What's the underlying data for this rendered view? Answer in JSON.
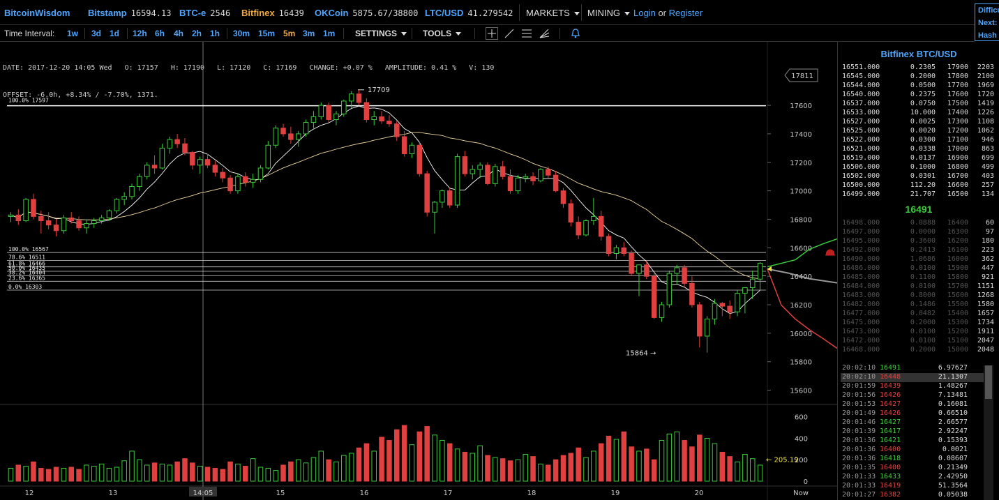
{
  "nav": {
    "brand": "BitcoinWisdom",
    "exchanges": [
      {
        "label": "Bitstamp",
        "value": "16594.13",
        "style": "blue"
      },
      {
        "label": "BTC-e",
        "value": "2546",
        "style": "blue"
      },
      {
        "label": "Bitfinex",
        "value": "16439",
        "style": "orange"
      },
      {
        "label": "OKCoin",
        "value": "5875.67/38800",
        "style": "blue"
      },
      {
        "label": "LTC/USD",
        "value": "41.279542",
        "style": "blue"
      }
    ],
    "markets": "MARKETS",
    "mining": "MINING",
    "login": "Login",
    "or": "or",
    "register": "Register",
    "right_panel": [
      "Difficu",
      "Next:",
      "Hash"
    ]
  },
  "toolbar": {
    "time_interval_label": "Time Interval:",
    "intervals": [
      "1w",
      "3d",
      "1d",
      "12h",
      "6h",
      "4h",
      "2h",
      "1h",
      "30m",
      "15m",
      "5m",
      "3m",
      "1m"
    ],
    "active_interval": "5m",
    "settings": "SETTINGS",
    "tools": "TOOLS"
  },
  "info": {
    "line1": "DATE: 2017-12-20 14:05 Wed   O: 17157   H: 17190   L: 17120   C: 17169   CHANGE: +0.07 %   AMPLITUDE: 0.41 %   V: 130",
    "line2": "OFFSET: -6.0h, +8.34% / -7.70%, 1371."
  },
  "book": {
    "title": "Bitfinex BTC/USD",
    "asks": [
      [
        "16551.000",
        "0.2305",
        "17900",
        "2203"
      ],
      [
        "16545.000",
        "0.2000",
        "17800",
        "2100"
      ],
      [
        "16544.000",
        "0.0500",
        "17700",
        "1969"
      ],
      [
        "16540.000",
        "0.2375",
        "17600",
        "1720"
      ],
      [
        "16537.000",
        "0.0750",
        "17500",
        "1419"
      ],
      [
        "16533.000",
        "10.000",
        "17400",
        "1226"
      ],
      [
        "16527.000",
        "0.0025",
        "17300",
        "1108"
      ],
      [
        "16525.000",
        "0.0020",
        "17200",
        "1062"
      ],
      [
        "16522.000",
        "0.0300",
        "17100",
        "946"
      ],
      [
        "16521.000",
        "0.0338",
        "17000",
        "863"
      ],
      [
        "16519.000",
        "0.0137",
        "16900",
        "699"
      ],
      [
        "16506.000",
        "0.1000",
        "16800",
        "499"
      ],
      [
        "16502.000",
        "0.0301",
        "16700",
        "403"
      ],
      [
        "16500.000",
        "112.20",
        "16600",
        "257"
      ],
      [
        "16499.000",
        "21.707",
        "16500",
        "134"
      ]
    ],
    "last_price": "16491",
    "bids": [
      [
        "16498.000",
        "0.0888",
        "16400",
        "60"
      ],
      [
        "16497.000",
        "0.0000",
        "16300",
        "97"
      ],
      [
        "16495.000",
        "0.3600",
        "16200",
        "180"
      ],
      [
        "16492.000",
        "0.2413",
        "16100",
        "223"
      ],
      [
        "16490.000",
        "1.0686",
        "16000",
        "362"
      ],
      [
        "16486.000",
        "0.0100",
        "15900",
        "447"
      ],
      [
        "16485.000",
        "0.1100",
        "15800",
        "921"
      ],
      [
        "16484.000",
        "0.0100",
        "15700",
        "1151"
      ],
      [
        "16483.000",
        "0.8000",
        "15600",
        "1268"
      ],
      [
        "16482.000",
        "0.1486",
        "15500",
        "1580"
      ],
      [
        "16477.000",
        "0.0482",
        "15400",
        "1657"
      ],
      [
        "16475.000",
        "0.2000",
        "15300",
        "1734"
      ],
      [
        "16473.000",
        "0.0100",
        "15200",
        "1911"
      ],
      [
        "16472.000",
        "0.0100",
        "15100",
        "2047"
      ],
      [
        "16468.000",
        "0.2000",
        "15000",
        "2048"
      ]
    ],
    "trades": [
      [
        "20:02:10",
        "16491",
        "6.97627",
        "up"
      ],
      [
        "20:02:10",
        "16448",
        "21.1307",
        "down"
      ],
      [
        "20:01:59",
        "16439",
        "1.48267",
        "down"
      ],
      [
        "20:01:56",
        "16426",
        "7.13481",
        "down"
      ],
      [
        "20:01:53",
        "16427",
        "0.16081",
        "down"
      ],
      [
        "20:01:49",
        "16426",
        "0.66510",
        "down"
      ],
      [
        "20:01:46",
        "16427",
        "2.66577",
        "up"
      ],
      [
        "20:01:39",
        "16417",
        "2.92247",
        "up"
      ],
      [
        "20:01:36",
        "16421",
        "0.15393",
        "up"
      ],
      [
        "20:01:36",
        "16400",
        "0.0021",
        "down"
      ],
      [
        "20:01:36",
        "16418",
        "0.08607",
        "up"
      ],
      [
        "20:01:35",
        "16400",
        "0.21349",
        "down"
      ],
      [
        "20:01:33",
        "16433",
        "2.42950",
        "up"
      ],
      [
        "20:01:33",
        "16419",
        "51.3564",
        "down"
      ],
      [
        "20:01:27",
        "16382",
        "0.05038",
        "down"
      ]
    ]
  },
  "chart": {
    "price_ticks": [
      "17600",
      "17400",
      "17200",
      "17000",
      "16800",
      "16600",
      "16400",
      "16200",
      "16000",
      "15800",
      "15600"
    ],
    "current_price_box": "17811",
    "high_label": "17709",
    "low_label": "15864 →",
    "fib_top": [
      "100.0% 17597"
    ],
    "fib_levels": [
      "100.0% 16567",
      "78.6% 16511",
      "61.8% 16466",
      "50.0% 16435",
      "38.2% 16404",
      "23.6% 16365",
      "0.0% 16303"
    ],
    "volume_ticks": [
      "600",
      "400",
      "200",
      "0"
    ],
    "volume_marker": "← 205.19",
    "x_labels": [
      "12",
      "13",
      "14:05",
      "15",
      "16",
      "17",
      "18",
      "19",
      "20",
      "Now"
    ]
  },
  "colors": {
    "up": "#3ccc3c",
    "down": "#e04040",
    "accent": "#4da6ff",
    "orange": "#f2a93b"
  },
  "chart_data": {
    "type": "candlestick",
    "title": "Bitfinex BTC/USD",
    "xlabel": "",
    "ylabel": "",
    "ylim": [
      15500,
      17850
    ],
    "volume_ylim": [
      0,
      650
    ],
    "x_labels": [
      "12",
      "13",
      "14",
      "15",
      "16",
      "17",
      "18",
      "19",
      "20"
    ],
    "candles_ohlc": [
      [
        16820,
        16850,
        16780,
        16830
      ],
      [
        16830,
        16870,
        16760,
        16790
      ],
      [
        16790,
        16950,
        16780,
        16940
      ],
      [
        16940,
        16980,
        16800,
        16820
      ],
      [
        16820,
        16860,
        16700,
        16790
      ],
      [
        16790,
        16850,
        16730,
        16760
      ],
      [
        16760,
        16800,
        16680,
        16720
      ],
      [
        16720,
        16830,
        16700,
        16810
      ],
      [
        16810,
        16850,
        16770,
        16790
      ],
      [
        16790,
        16820,
        16720,
        16740
      ],
      [
        16740,
        16800,
        16700,
        16770
      ],
      [
        16770,
        16810,
        16740,
        16790
      ],
      [
        16790,
        16830,
        16770,
        16810
      ],
      [
        16810,
        16870,
        16790,
        16860
      ],
      [
        16860,
        16950,
        16840,
        16940
      ],
      [
        16940,
        16990,
        16900,
        16960
      ],
      [
        16960,
        17050,
        16940,
        17030
      ],
      [
        17030,
        17120,
        17000,
        17100
      ],
      [
        17100,
        17200,
        17080,
        17180
      ],
      [
        17180,
        17250,
        17120,
        17160
      ],
      [
        17160,
        17330,
        17150,
        17300
      ],
      [
        17300,
        17380,
        17260,
        17360
      ],
      [
        17360,
        17400,
        17300,
        17330
      ],
      [
        17330,
        17370,
        17250,
        17270
      ],
      [
        17270,
        17280,
        17150,
        17180
      ],
      [
        17180,
        17240,
        17120,
        17220
      ],
      [
        17220,
        17260,
        17160,
        17180
      ],
      [
        17180,
        17210,
        17100,
        17130
      ],
      [
        17130,
        17160,
        17060,
        17090
      ],
      [
        17090,
        17110,
        16980,
        17000
      ],
      [
        17000,
        17120,
        16980,
        17100
      ],
      [
        17100,
        17130,
        17030,
        17060
      ],
      [
        17060,
        17120,
        17020,
        17080
      ],
      [
        17080,
        17180,
        17060,
        17160
      ],
      [
        17160,
        17350,
        17150,
        17320
      ],
      [
        17320,
        17460,
        17300,
        17440
      ],
      [
        17440,
        17470,
        17380,
        17400
      ],
      [
        17400,
        17450,
        17330,
        17360
      ],
      [
        17360,
        17420,
        17310,
        17400
      ],
      [
        17400,
        17500,
        17380,
        17480
      ],
      [
        17480,
        17560,
        17440,
        17520
      ],
      [
        17520,
        17620,
        17500,
        17600
      ],
      [
        17600,
        17620,
        17480,
        17500
      ],
      [
        17500,
        17560,
        17460,
        17540
      ],
      [
        17540,
        17640,
        17520,
        17630
      ],
      [
        17630,
        17700,
        17580,
        17680
      ],
      [
        17680,
        17709,
        17600,
        17620
      ],
      [
        17620,
        17650,
        17480,
        17500
      ],
      [
        17500,
        17560,
        17460,
        17520
      ],
      [
        17520,
        17560,
        17470,
        17490
      ],
      [
        17490,
        17530,
        17450,
        17470
      ],
      [
        17470,
        17490,
        17350,
        17380
      ],
      [
        17380,
        17420,
        17240,
        17260
      ],
      [
        17260,
        17340,
        17230,
        17320
      ],
      [
        17320,
        17340,
        17100,
        17120
      ],
      [
        17120,
        17140,
        16820,
        16850
      ],
      [
        16850,
        16930,
        16700,
        16920
      ],
      [
        16920,
        17010,
        16880,
        17000
      ],
      [
        17000,
        17020,
        16880,
        16900
      ],
      [
        16900,
        17260,
        16880,
        17240
      ],
      [
        17240,
        17280,
        17100,
        17120
      ],
      [
        17120,
        17180,
        17080,
        17150
      ],
      [
        17150,
        17200,
        17090,
        17180
      ],
      [
        17180,
        17200,
        17040,
        17050
      ],
      [
        17050,
        17190,
        17030,
        17170
      ],
      [
        17170,
        17210,
        17080,
        17100
      ],
      [
        17100,
        17150,
        16980,
        17000
      ],
      [
        17000,
        17110,
        16980,
        17090
      ],
      [
        17090,
        17120,
        17060,
        17100
      ],
      [
        17100,
        17130,
        17040,
        17070
      ],
      [
        17070,
        17160,
        17060,
        17150
      ],
      [
        17150,
        17170,
        17090,
        17110
      ],
      [
        17110,
        17140,
        16990,
        17000
      ],
      [
        17000,
        17020,
        16880,
        16910
      ],
      [
        16910,
        16940,
        16750,
        16780
      ],
      [
        16780,
        16820,
        16660,
        16690
      ],
      [
        16690,
        16800,
        16680,
        16790
      ],
      [
        16790,
        16950,
        16760,
        16820
      ],
      [
        16820,
        16860,
        16650,
        16680
      ],
      [
        16680,
        16700,
        16540,
        16560
      ],
      [
        16560,
        16620,
        16520,
        16600
      ],
      [
        16600,
        16640,
        16540,
        16560
      ],
      [
        16560,
        16580,
        16400,
        16420
      ],
      [
        16420,
        16470,
        16260,
        16480
      ],
      [
        16480,
        16510,
        16380,
        16400
      ],
      [
        16400,
        16420,
        16100,
        16110
      ],
      [
        16110,
        16220,
        16080,
        16200
      ],
      [
        16200,
        16440,
        16180,
        16420
      ],
      [
        16420,
        16480,
        16340,
        16460
      ],
      [
        16460,
        16480,
        16320,
        16350
      ],
      [
        16350,
        16400,
        16180,
        16200
      ],
      [
        16200,
        16220,
        15900,
        15980
      ],
      [
        15980,
        16120,
        15864,
        16100
      ],
      [
        16100,
        16240,
        16060,
        16210
      ],
      [
        16210,
        16220,
        16120,
        16190
      ],
      [
        16190,
        16230,
        16100,
        16150
      ],
      [
        16150,
        16300,
        16120,
        16280
      ],
      [
        16280,
        16310,
        16140,
        16320
      ],
      [
        16320,
        16440,
        16240,
        16380
      ],
      [
        16380,
        16500,
        16300,
        16491
      ]
    ],
    "volumes": [
      120,
      150,
      140,
      180,
      120,
      110,
      130,
      120,
      130,
      110,
      150,
      140,
      160,
      120,
      130,
      190,
      280,
      200,
      150,
      170,
      160,
      150,
      180,
      210,
      170,
      140,
      130,
      120,
      110,
      180,
      160,
      140,
      210,
      130,
      120,
      100,
      150,
      180,
      200,
      170,
      220,
      280,
      200,
      180,
      240,
      260,
      310,
      350,
      280,
      410,
      380,
      480,
      520,
      340,
      460,
      510,
      430,
      380,
      350,
      300,
      270,
      260,
      330,
      240,
      220,
      210,
      190,
      200,
      250,
      230,
      160,
      150,
      200,
      240,
      260,
      310,
      220,
      280,
      350,
      420,
      390,
      460,
      320,
      280,
      300,
      200,
      380,
      440,
      460,
      380,
      320,
      430,
      400,
      350,
      270,
      230,
      180,
      250,
      210,
      150
    ],
    "series": [
      {
        "name": "",
        "type": "moving-average-fast",
        "color": "#ffffff"
      },
      {
        "name": "",
        "type": "moving-average-slow",
        "color": "#f0d8a0"
      }
    ]
  }
}
